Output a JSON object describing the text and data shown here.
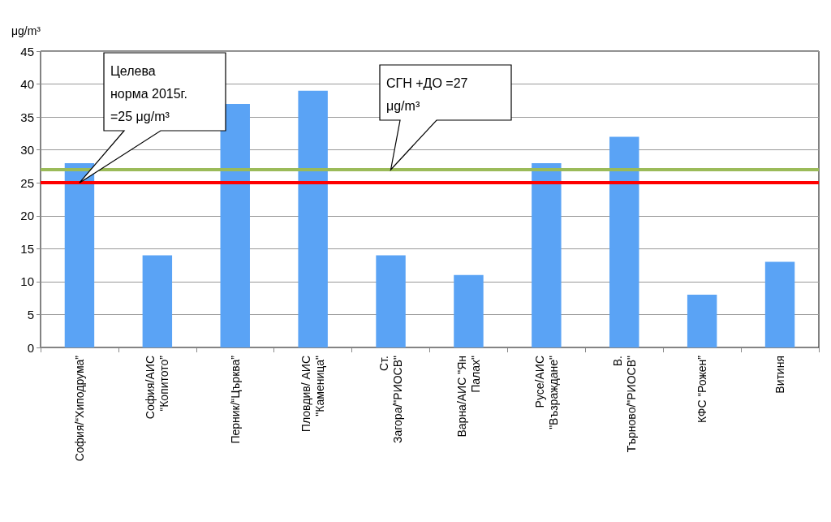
{
  "chart_data": {
    "type": "bar",
    "ylabel": "μg/m³",
    "categories": [
      "София/“Хиподрума”",
      "София/АИС\n“Копитото”",
      "Перник/“Църква”",
      "Пловдив/ АИС\n\"Каменица\"",
      "Ст.\nЗагора/\"РИОСВ\"",
      "Варна/АИС \"Ян\nПалах\"",
      "Русе/АИС\n\"Възраждане\"",
      "В.\nТърново/\"РИОСВ\"",
      "КФС “Рожен”",
      "Витиня"
    ],
    "values": [
      28,
      14,
      37,
      39,
      14,
      11,
      28,
      32,
      8,
      13
    ],
    "color": "#5aa3f5",
    "ylim": [
      0,
      45
    ],
    "yticks": [
      0,
      5,
      10,
      15,
      20,
      25,
      30,
      35,
      40,
      45
    ],
    "grid": "y",
    "ref_lines": [
      {
        "axis": "y",
        "value": 25,
        "color": "#ff0000"
      },
      {
        "axis": "y",
        "value": 27,
        "color": "#9bbb59"
      }
    ],
    "annotations": [
      "Целева\nнорма 2015г.\n=25 μg/m³",
      "СГН +ДО =27\nμg/m³"
    ]
  }
}
